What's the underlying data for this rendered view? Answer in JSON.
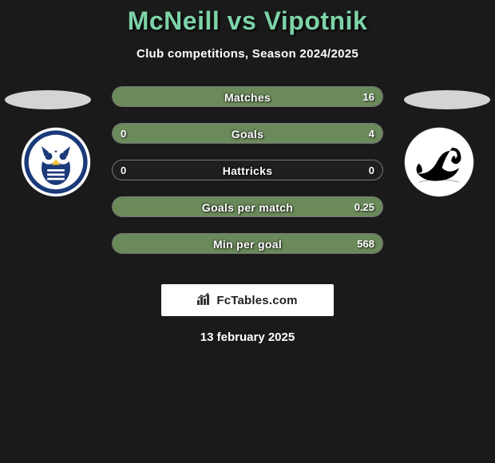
{
  "title": "McNeill vs Vipotnik",
  "title_color": "#7dd3a8",
  "subtitle": "Club competitions, Season 2024/2025",
  "background_color": "#1a1a1a",
  "bar_left_color": "#4a5a4a",
  "bar_right_color": "#6b8a5a",
  "bar_border_color": "rgba(180,180,180,0.6)",
  "badge_left": {
    "ellipse_color": "#d4d4d4",
    "circle_bg": "#ffffff",
    "inner_bg": "#1a3a7a",
    "text_color": "#ffffff"
  },
  "badge_right": {
    "ellipse_color": "#d4d4d4",
    "circle_bg": "#ffffff",
    "swan_color": "#000000"
  },
  "stats": [
    {
      "label": "Matches",
      "left_val": "",
      "right_val": "16",
      "left_pct": 0,
      "right_pct": 100
    },
    {
      "label": "Goals",
      "left_val": "0",
      "right_val": "4",
      "left_pct": 0,
      "right_pct": 100
    },
    {
      "label": "Hattricks",
      "left_val": "0",
      "right_val": "0",
      "left_pct": 0,
      "right_pct": 0
    },
    {
      "label": "Goals per match",
      "left_val": "",
      "right_val": "0.25",
      "left_pct": 0,
      "right_pct": 100
    },
    {
      "label": "Min per goal",
      "left_val": "",
      "right_val": "568",
      "left_pct": 0,
      "right_pct": 100
    }
  ],
  "branding": "FcTables.com",
  "date": "13 february 2025"
}
